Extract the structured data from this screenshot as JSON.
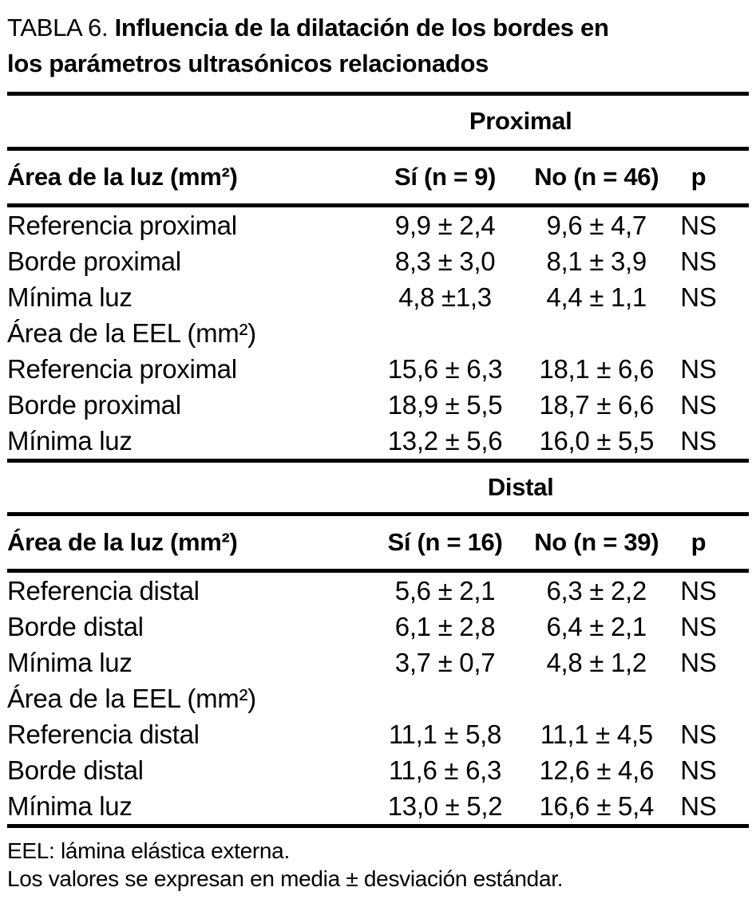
{
  "title": {
    "prefix": "TABLA 6.",
    "line1_rest": "Influencia de la dilatación de los bordes en",
    "line2": "los parámetros ultrasónicos relacionados"
  },
  "panels": [
    {
      "section": "Proximal",
      "columns": {
        "label": "Área de la luz (mm²)",
        "si": "Sí (n = 9)",
        "no": "No (n = 46)",
        "p": "p"
      },
      "rows": [
        {
          "label": "Referencia proximal",
          "si": "9,9 ± 2,4",
          "no": "9,6 ± 4,7",
          "p": "NS"
        },
        {
          "label": "Borde proximal",
          "si": "8,3 ± 3,0",
          "no": "8,1 ± 3,9",
          "p": "NS"
        },
        {
          "label": "Mínima luz",
          "si": "4,8 ±1,3",
          "no": "4,4 ± 1,1",
          "p": "NS"
        },
        {
          "label": "Área de la EEL (mm²)",
          "si": "",
          "no": "",
          "p": ""
        },
        {
          "label": "Referencia proximal",
          "si": "15,6 ± 6,3",
          "no": "18,1 ± 6,6",
          "p": "NS"
        },
        {
          "label": "Borde proximal",
          "si": "18,9 ± 5,5",
          "no": "18,7 ± 6,6",
          "p": "NS"
        },
        {
          "label": "Mínima luz",
          "si": "13,2 ± 5,6",
          "no": "16,0 ± 5,5",
          "p": "NS"
        }
      ]
    },
    {
      "section": "Distal",
      "columns": {
        "label": "Área de la luz (mm²)",
        "si": "Sí (n = 16)",
        "no": "No (n = 39)",
        "p": "p"
      },
      "rows": [
        {
          "label": "Referencia distal",
          "si": "5,6 ± 2,1",
          "no": "6,3 ± 2,2",
          "p": "NS"
        },
        {
          "label": "Borde distal",
          "si": "6,1 ± 2,8",
          "no": "6,4 ± 2,1",
          "p": "NS"
        },
        {
          "label": "Mínima luz",
          "si": "3,7 ± 0,7",
          "no": "4,8 ± 1,2",
          "p": "NS"
        },
        {
          "label": "Área de la EEL (mm²)",
          "si": "",
          "no": "",
          "p": ""
        },
        {
          "label": "Referencia distal",
          "si": "11,1 ± 5,8",
          "no": "11,1 ± 4,5",
          "p": "NS"
        },
        {
          "label": "Borde distal",
          "si": "11,6 ± 6,3",
          "no": "12,6 ± 4,6",
          "p": "NS"
        },
        {
          "label": "Mínima luz",
          "si": "13,0 ± 5,2",
          "no": "16,6 ± 5,4",
          "p": "NS"
        }
      ]
    }
  ],
  "footnotes": [
    "EEL: lámina elástica externa.",
    "Los valores se expresan en media ± desviación estándar."
  ],
  "colors": {
    "text": "#000000",
    "background": "#ffffff",
    "rule": "#000000"
  }
}
